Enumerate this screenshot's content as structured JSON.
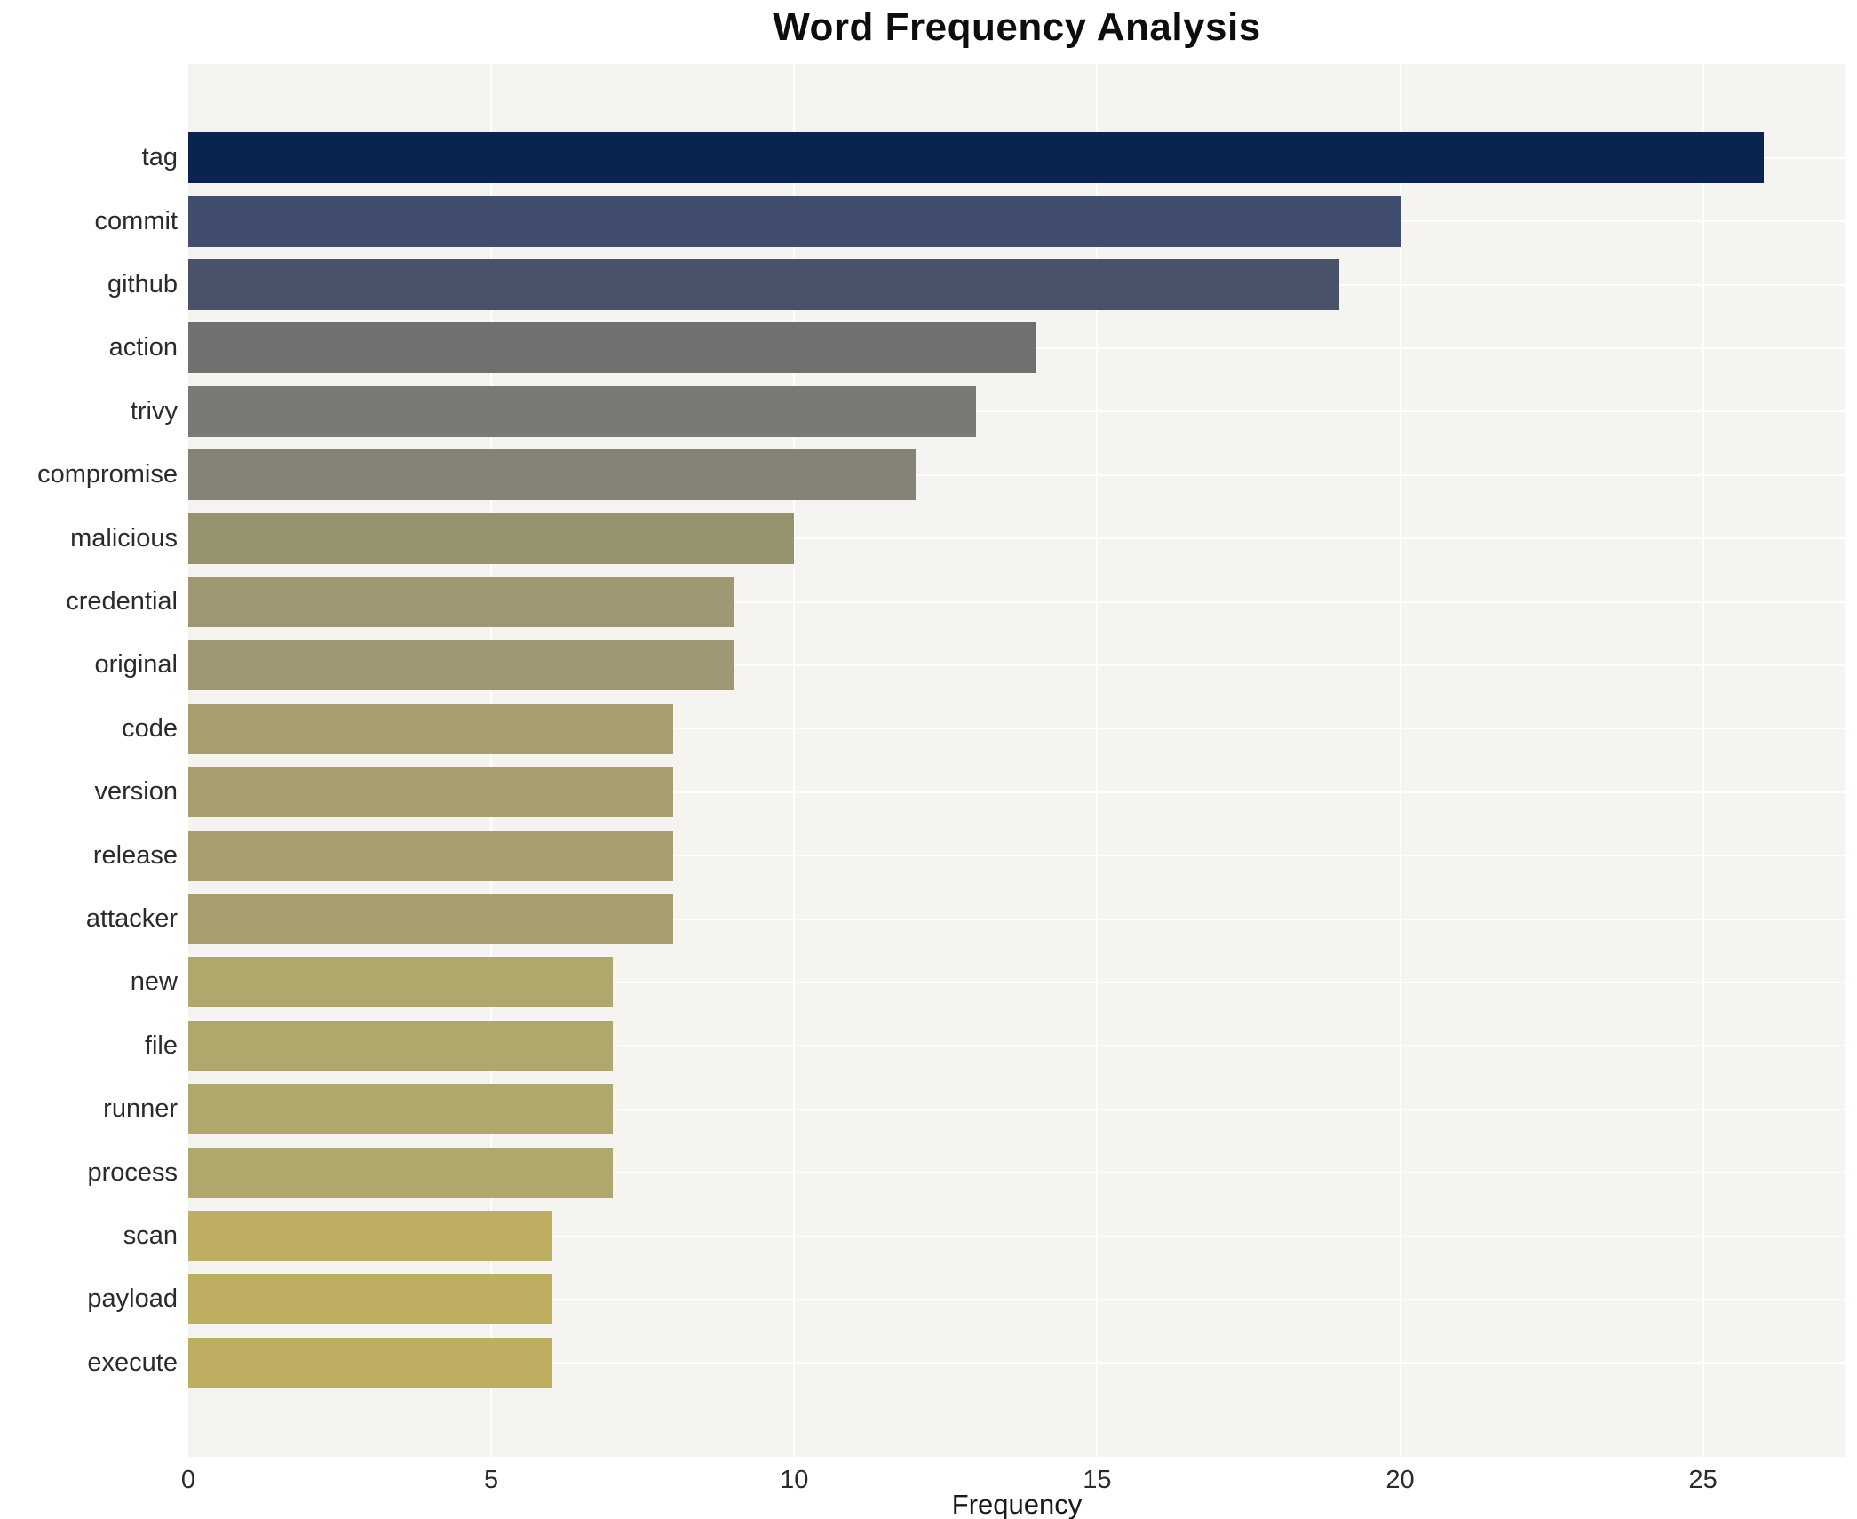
{
  "chart_data": {
    "type": "bar",
    "orientation": "horizontal",
    "title": "Word Frequency Analysis",
    "xlabel": "Frequency",
    "ylabel": "",
    "categories": [
      "tag",
      "commit",
      "github",
      "action",
      "trivy",
      "compromise",
      "malicious",
      "credential",
      "original",
      "code",
      "version",
      "release",
      "attacker",
      "new",
      "file",
      "runner",
      "process",
      "scan",
      "payload",
      "execute"
    ],
    "values": [
      26,
      20,
      19,
      14,
      13,
      12,
      10,
      9,
      9,
      8,
      8,
      8,
      8,
      7,
      7,
      7,
      7,
      6,
      6,
      6
    ],
    "bar_colors": [
      "#0a2450",
      "#414d6e",
      "#4a5269",
      "#707070",
      "#7a7973",
      "#858278",
      "#98936f",
      "#9e9772",
      "#9e9772",
      "#a79f6e",
      "#a79f6e",
      "#a79f6e",
      "#a79f6e",
      "#b0a76c",
      "#b0a76c",
      "#b0a76c",
      "#b0a76c",
      "#bdae62",
      "#bdae62",
      "#bdae62"
    ],
    "xlim": [
      0,
      27.35
    ],
    "xticks": [
      0,
      5,
      10,
      15,
      20,
      25
    ],
    "grid": "on",
    "legend": "none",
    "plot_background": "#f5f4f1",
    "grid_color": "#ffffff",
    "colormap_note": "cividis-style gradient mapped to value: dark navy (high) to khaki (low)"
  }
}
